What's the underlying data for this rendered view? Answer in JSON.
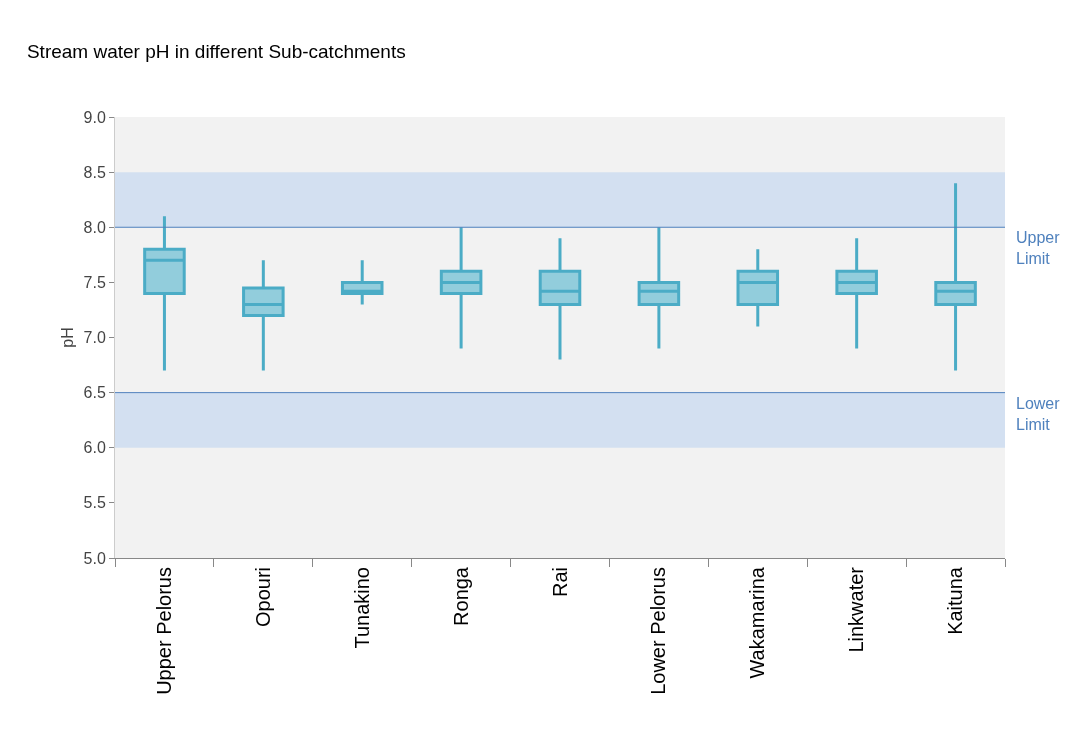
{
  "chart_data": {
    "type": "box",
    "title": "Stream water pH in different Sub-catchments",
    "ylabel": "pH",
    "categories": [
      "Upper Pelorus",
      "Opouri",
      "Tunakino",
      "Ronga",
      "Rai",
      "Lower Pelorus",
      "Wakamarina",
      "Linkwater",
      "Kaituna"
    ],
    "boxes": [
      {
        "low": 6.7,
        "q1": 7.4,
        "median": 7.7,
        "q3": 7.8,
        "high": 8.1
      },
      {
        "low": 6.7,
        "q1": 7.2,
        "median": 7.3,
        "q3": 7.45,
        "high": 7.7
      },
      {
        "low": 7.3,
        "q1": 7.4,
        "median": 7.42,
        "q3": 7.5,
        "high": 7.7
      },
      {
        "low": 6.9,
        "q1": 7.4,
        "median": 7.5,
        "q3": 7.6,
        "high": 8.0
      },
      {
        "low": 6.8,
        "q1": 7.3,
        "median": 7.42,
        "q3": 7.6,
        "high": 7.9
      },
      {
        "low": 6.9,
        "q1": 7.3,
        "median": 7.42,
        "q3": 7.5,
        "high": 8.0
      },
      {
        "low": 7.1,
        "q1": 7.3,
        "median": 7.5,
        "q3": 7.6,
        "high": 7.8
      },
      {
        "low": 6.9,
        "q1": 7.4,
        "median": 7.5,
        "q3": 7.6,
        "high": 7.9
      },
      {
        "low": 6.7,
        "q1": 7.3,
        "median": 7.42,
        "q3": 7.5,
        "high": 8.4
      }
    ],
    "color": "#4bacc6",
    "ylim": [
      5,
      9
    ],
    "yticks": [
      {
        "value": 5,
        "label": "5.0"
      },
      {
        "value": 5.5,
        "label": "5.5"
      },
      {
        "value": 6,
        "label": "6.0"
      },
      {
        "value": 6.5,
        "label": "6.5"
      },
      {
        "value": 7,
        "label": "7.0"
      },
      {
        "value": 7.5,
        "label": "7.5"
      },
      {
        "value": 8,
        "label": "8.0"
      },
      {
        "value": 8.5,
        "label": "8.5"
      },
      {
        "value": 9,
        "label": "9.0"
      }
    ],
    "ref_lines": [
      {
        "axis": "y",
        "value": 8,
        "label": "Upper Limit",
        "color": "#4f81bd"
      },
      {
        "axis": "y",
        "value": 6.5,
        "label": "Lower Limit",
        "color": "#4f81bd"
      }
    ],
    "bands": [
      {
        "axis": "y",
        "from": 8,
        "to": 8.5,
        "color": "#c6d9f1"
      },
      {
        "axis": "y",
        "from": 6,
        "to": 6.5,
        "color": "#c6d9f1"
      }
    ],
    "grid": false
  }
}
